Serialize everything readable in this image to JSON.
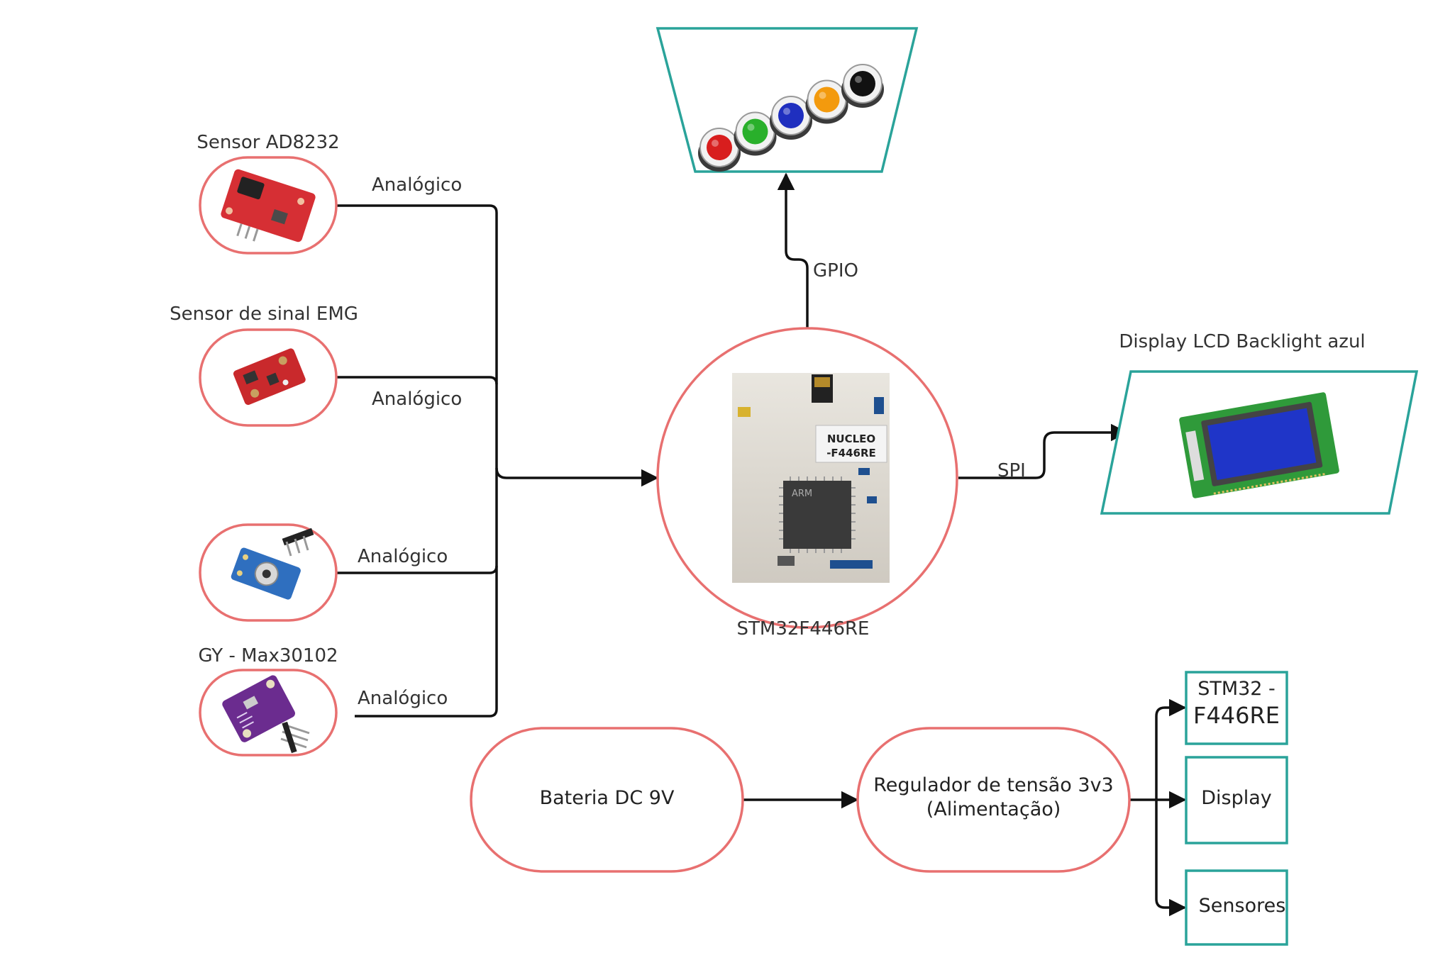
{
  "sensors": {
    "ad8232": {
      "label": "Sensor AD8232",
      "signal": "Analógico"
    },
    "emg": {
      "label": "Sensor de sinal EMG",
      "signal": "Analógico"
    },
    "temperature": {
      "signal": "Analógico"
    },
    "max30102": {
      "label": "GY - Max30102",
      "signal": "Analógico"
    }
  },
  "mcu": {
    "label": "STM32F446RE",
    "board_text_1": "NUCLEO",
    "board_text_2": "-F446RE",
    "chip_text": "ARM"
  },
  "buttons": {
    "interface": "GPIO",
    "colors": [
      "#d81e1e",
      "#29b02b",
      "#1f2fbf",
      "#f39a0d",
      "#111111"
    ]
  },
  "display": {
    "label": "Display LCD Backlight azul",
    "interface": "SPI"
  },
  "power": {
    "battery": "Bateria DC 9V",
    "regulator_line1": "Regulador de tensão 3v3",
    "regulator_line2": "(Alimentação)",
    "targets": {
      "stm32_line1": "STM32 -",
      "stm32_line2": "F446RE",
      "display": "Display",
      "sensors": "Sensores"
    }
  },
  "colors": {
    "node_border": "#e87070",
    "box_border": "#2aa39a",
    "line": "#111111"
  }
}
